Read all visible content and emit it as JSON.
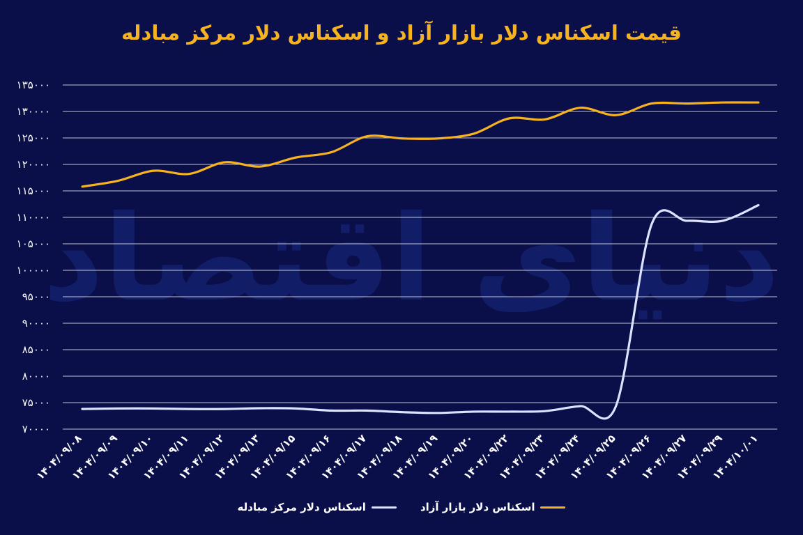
{
  "title": "قیمت اسکناس دلار بازار آزاد و اسکناس دلار مرکز مبادله",
  "watermark_text": "دنیای اقتصاد",
  "chart_data": {
    "type": "line",
    "title": "قیمت اسکناس دلار بازار آزاد و اسکناس دلار مرکز مبادله",
    "xlabel": "",
    "ylabel": "",
    "ylim": [
      70000,
      135000
    ],
    "ytick_labels": [
      "۱۳۵۰۰۰",
      "۱۳۰۰۰۰",
      "۱۲۵۰۰۰",
      "۱۲۰۰۰۰",
      "۱۱۵۰۰۰",
      "۱۱۰۰۰۰",
      "۱۰۵۰۰۰",
      "۱۰۰۰۰۰",
      "۹۵۰۰۰",
      "۹۰۰۰۰",
      "۸۵۰۰۰",
      "۸۰۰۰۰",
      "۷۵۰۰۰",
      "۷۰۰۰۰"
    ],
    "grid": true,
    "legend_position": "bottom-center",
    "categories": [
      "۱۴۰۴/۰۹/۰۸",
      "۱۴۰۴/۰۹/۰۹",
      "۱۴۰۴/۰۹/۱۰",
      "۱۴۰۴/۰۹/۱۱",
      "۱۴۰۴/۰۹/۱۲",
      "۱۴۰۴/۰۹/۱۳",
      "۱۴۰۴/۰۹/۱۵",
      "۱۴۰۴/۰۹/۱۶",
      "۱۴۰۴/۰۹/۱۷",
      "۱۴۰۴/۰۹/۱۸",
      "۱۴۰۴/۰۹/۱۹",
      "۱۴۰۴/۰۹/۲۰",
      "۱۴۰۴/۰۹/۲۲",
      "۱۴۰۴/۰۹/۲۳",
      "۱۴۰۴/۰۹/۲۴",
      "۱۴۰۴/۰۹/۲۵",
      "۱۴۰۴/۰۹/۲۶",
      "۱۴۰۴/۰۹/۲۷",
      "۱۴۰۴/۰۹/۲۹",
      "۱۴۰۴/۱۰/۰۱"
    ],
    "series": [
      {
        "name": "اسکناس دلار بازار آزاد",
        "color": "#f7b21f",
        "values": [
          115800,
          116900,
          118800,
          118200,
          120400,
          119600,
          121300,
          122300,
          125300,
          124900,
          124900,
          125800,
          128700,
          128500,
          130700,
          129300,
          131500,
          131500,
          131700,
          131700
        ]
      },
      {
        "name": "اسکناس دلار مرکز مبادله",
        "color": "#dde3ff",
        "values": [
          73800,
          73900,
          73900,
          73800,
          73800,
          73950,
          73900,
          73500,
          73500,
          73200,
          73050,
          73300,
          73300,
          73400,
          74350,
          74400,
          108700,
          109350,
          109350,
          112300
        ]
      }
    ]
  }
}
